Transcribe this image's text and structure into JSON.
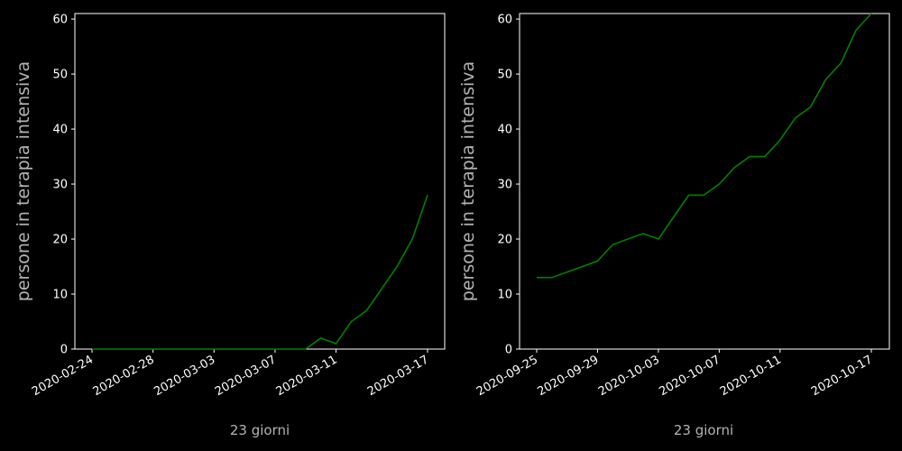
{
  "colors": {
    "background": "#000000",
    "axes_edge": "#ffffff",
    "tick_label": "#ffffff",
    "axis_label": "#b3b3b3",
    "line": "#008000"
  },
  "chart_data": [
    {
      "type": "line",
      "xlabel": "23 giorni",
      "ylabel": "persone in terapia intensiva",
      "ylim": [
        0,
        61
      ],
      "yticks": [
        0,
        10,
        20,
        30,
        40,
        50,
        60
      ],
      "xticks": [
        "2020-02-24",
        "2020-02-28",
        "2020-03-03",
        "2020-03-07",
        "2020-03-11",
        "2020-03-17"
      ],
      "grid": false,
      "legend": "none",
      "series": [
        {
          "x": [
            "2020-02-24",
            "2020-02-25",
            "2020-02-26",
            "2020-02-27",
            "2020-02-28",
            "2020-02-29",
            "2020-03-01",
            "2020-03-02",
            "2020-03-03",
            "2020-03-04",
            "2020-03-05",
            "2020-03-06",
            "2020-03-07",
            "2020-03-08",
            "2020-03-09",
            "2020-03-10",
            "2020-03-11",
            "2020-03-12",
            "2020-03-13",
            "2020-03-14",
            "2020-03-15",
            "2020-03-16",
            "2020-03-17"
          ],
          "y": [
            0,
            0,
            0,
            0,
            0,
            0,
            0,
            0,
            0,
            0,
            0,
            0,
            0,
            0,
            0,
            2,
            1,
            5,
            7,
            11,
            15,
            20,
            28
          ]
        }
      ]
    },
    {
      "type": "line",
      "xlabel": "23 giorni",
      "ylabel": "persone in terapia intensiva",
      "ylim": [
        0,
        61
      ],
      "yticks": [
        0,
        10,
        20,
        30,
        40,
        50,
        60
      ],
      "xticks": [
        "2020-09-25",
        "2020-09-29",
        "2020-10-03",
        "2020-10-07",
        "2020-10-11",
        "2020-10-17"
      ],
      "grid": false,
      "legend": "none",
      "series": [
        {
          "x": [
            "2020-09-25",
            "2020-09-26",
            "2020-09-27",
            "2020-09-28",
            "2020-09-29",
            "2020-09-30",
            "2020-10-01",
            "2020-10-02",
            "2020-10-03",
            "2020-10-04",
            "2020-10-05",
            "2020-10-06",
            "2020-10-07",
            "2020-10-08",
            "2020-10-09",
            "2020-10-10",
            "2020-10-11",
            "2020-10-12",
            "2020-10-13",
            "2020-10-14",
            "2020-10-15",
            "2020-10-16",
            "2020-10-17"
          ],
          "y": [
            13,
            13,
            14,
            15,
            16,
            19,
            20,
            21,
            20,
            24,
            28,
            28,
            30,
            33,
            35,
            35,
            38,
            42,
            44,
            49,
            52,
            58,
            61
          ]
        }
      ]
    }
  ]
}
